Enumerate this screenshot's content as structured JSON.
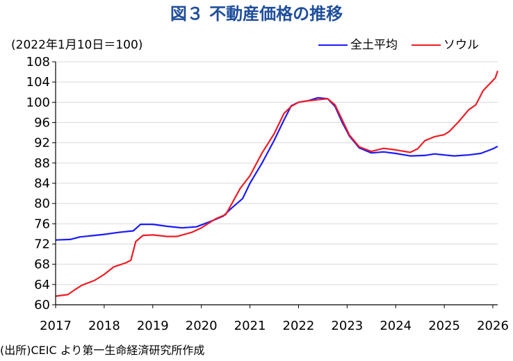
{
  "title": "図３ 不動産価格の推移",
  "unit_label": "(2022年1月10日＝100)",
  "source": "(出所)CEIC より第一生命経済研究所作成",
  "colors": {
    "title": "#1f4e9c",
    "national": "#1a1aff",
    "seoul": "#ee1c24",
    "grid": "#d9d9d9",
    "axis": "#000000"
  },
  "chart_data": {
    "type": "line",
    "title": "図３ 不動産価格の推移",
    "ylabel": "(2022年1月10日＝100)",
    "xlabel": "",
    "ylim": [
      60,
      108
    ],
    "xlim": [
      2017.0,
      2026.1
    ],
    "grid": "horizontal",
    "legend_position": "top-right",
    "y_ticks": [
      60,
      64,
      68,
      72,
      76,
      80,
      84,
      88,
      92,
      96,
      100,
      104,
      108
    ],
    "x_ticks": [
      2017,
      2018,
      2019,
      2020,
      2021,
      2022,
      2023,
      2024,
      2025,
      2026
    ],
    "series": [
      {
        "name": "全土平均",
        "color": "#1a1aff",
        "points": [
          [
            2017.0,
            72.8
          ],
          [
            2017.3,
            72.9
          ],
          [
            2017.5,
            73.4
          ],
          [
            2017.8,
            73.7
          ],
          [
            2018.0,
            73.9
          ],
          [
            2018.3,
            74.3
          ],
          [
            2018.6,
            74.6
          ],
          [
            2018.75,
            75.9
          ],
          [
            2019.0,
            75.9
          ],
          [
            2019.3,
            75.5
          ],
          [
            2019.6,
            75.2
          ],
          [
            2019.9,
            75.4
          ],
          [
            2020.2,
            76.5
          ],
          [
            2020.45,
            77.5
          ],
          [
            2020.6,
            78.9
          ],
          [
            2020.85,
            81.0
          ],
          [
            2021.0,
            84.0
          ],
          [
            2021.25,
            88.0
          ],
          [
            2021.5,
            92.5
          ],
          [
            2021.7,
            96.5
          ],
          [
            2021.85,
            99.3
          ],
          [
            2022.0,
            100.0
          ],
          [
            2022.2,
            100.3
          ],
          [
            2022.4,
            100.9
          ],
          [
            2022.6,
            100.7
          ],
          [
            2022.75,
            99.2
          ],
          [
            2022.9,
            96.0
          ],
          [
            2023.05,
            93.3
          ],
          [
            2023.25,
            91.0
          ],
          [
            2023.5,
            90.0
          ],
          [
            2023.75,
            90.2
          ],
          [
            2024.0,
            89.9
          ],
          [
            2024.3,
            89.4
          ],
          [
            2024.6,
            89.5
          ],
          [
            2024.8,
            89.8
          ],
          [
            2025.0,
            89.6
          ],
          [
            2025.2,
            89.4
          ],
          [
            2025.5,
            89.6
          ],
          [
            2025.75,
            89.9
          ],
          [
            2026.0,
            90.8
          ],
          [
            2026.1,
            91.3
          ]
        ]
      },
      {
        "name": "ソウル",
        "color": "#ee1c24",
        "points": [
          [
            2017.0,
            61.7
          ],
          [
            2017.25,
            62.0
          ],
          [
            2017.4,
            63.0
          ],
          [
            2017.55,
            63.9
          ],
          [
            2017.8,
            64.8
          ],
          [
            2018.0,
            66.0
          ],
          [
            2018.2,
            67.5
          ],
          [
            2018.45,
            68.3
          ],
          [
            2018.55,
            68.8
          ],
          [
            2018.65,
            72.5
          ],
          [
            2018.8,
            73.7
          ],
          [
            2019.0,
            73.8
          ],
          [
            2019.3,
            73.5
          ],
          [
            2019.5,
            73.5
          ],
          [
            2019.8,
            74.3
          ],
          [
            2020.0,
            75.2
          ],
          [
            2020.3,
            77.0
          ],
          [
            2020.5,
            77.8
          ],
          [
            2020.6,
            79.5
          ],
          [
            2020.8,
            83.0
          ],
          [
            2021.0,
            85.5
          ],
          [
            2021.25,
            90.0
          ],
          [
            2021.5,
            93.8
          ],
          [
            2021.7,
            97.8
          ],
          [
            2021.85,
            99.2
          ],
          [
            2022.0,
            100.0
          ],
          [
            2022.2,
            100.3
          ],
          [
            2022.4,
            100.5
          ],
          [
            2022.6,
            100.7
          ],
          [
            2022.75,
            99.5
          ],
          [
            2022.9,
            96.5
          ],
          [
            2023.05,
            93.5
          ],
          [
            2023.25,
            91.2
          ],
          [
            2023.5,
            90.3
          ],
          [
            2023.75,
            90.9
          ],
          [
            2024.0,
            90.6
          ],
          [
            2024.3,
            90.1
          ],
          [
            2024.45,
            90.8
          ],
          [
            2024.6,
            92.4
          ],
          [
            2024.8,
            93.2
          ],
          [
            2025.0,
            93.6
          ],
          [
            2025.1,
            94.2
          ],
          [
            2025.3,
            96.2
          ],
          [
            2025.5,
            98.5
          ],
          [
            2025.65,
            99.5
          ],
          [
            2025.8,
            102.3
          ],
          [
            2025.95,
            103.8
          ],
          [
            2026.05,
            104.8
          ],
          [
            2026.1,
            106.2
          ]
        ]
      }
    ]
  }
}
